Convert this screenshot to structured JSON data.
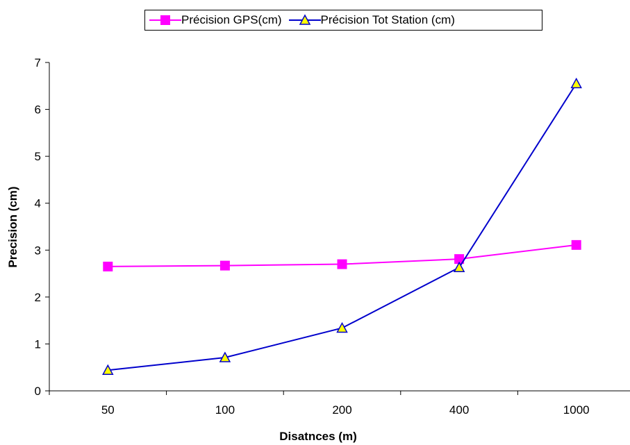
{
  "chart_data": {
    "type": "line",
    "categories": [
      "50",
      "100",
      "200",
      "400",
      "1000"
    ],
    "series": [
      {
        "name": "Précision GPS(cm)",
        "values": [
          2.65,
          2.67,
          2.7,
          2.81,
          3.11
        ],
        "color": "#FF00FF",
        "marker": "square"
      },
      {
        "name": "Précision Tot Station (cm)",
        "values": [
          0.44,
          0.71,
          1.34,
          2.63,
          6.55
        ],
        "color": "#0000CC",
        "marker": "triangle"
      }
    ],
    "xlabel": "Disatnces (m)",
    "ylabel": "Precision (cm)",
    "ylim": [
      0,
      7
    ],
    "yticks": [
      "0",
      "1",
      "2",
      "3",
      "4",
      "5",
      "6",
      "7"
    ],
    "grid": false,
    "legend_position": "top"
  }
}
